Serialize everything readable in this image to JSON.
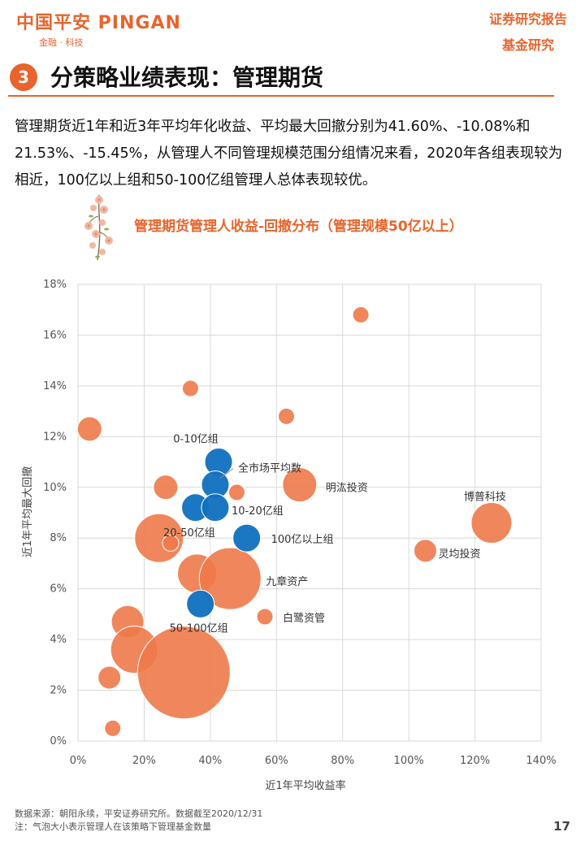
{
  "header": {
    "logo_text": "中国平安 PINGAN",
    "logo_sub": "金融 · 科技",
    "report_type": "证券研究报告",
    "report_sub": "基金研究"
  },
  "section": {
    "number": "3",
    "title": "分策略业绩表现：管理期货"
  },
  "body_text": "管理期货近1年和近3年平均年化收益、平均最大回撤分别为41.60%、-10.08%和21.53%、-15.45%，从管理人不同管理规模范围分组情况来看，2020年各组表现较为相近，100亿以上组和50-100亿组管理人总体表现较优。",
  "chart_title": "管理期货管理人收益-回撤分布（管理规模50亿以上）",
  "chart_data": {
    "type": "scatter",
    "xlabel": "近1年平均收益率",
    "ylabel": "近1年平均最大回撤",
    "xlim": [
      0,
      1.4
    ],
    "ylim": [
      0,
      0.18
    ],
    "x_ticks": [
      "0%",
      "20%",
      "40%",
      "60%",
      "80%",
      "100%",
      "120%",
      "140%"
    ],
    "y_ticks": [
      "0%",
      "2%",
      "4%",
      "6%",
      "8%",
      "10%",
      "12%",
      "14%",
      "16%",
      "18%"
    ],
    "grid": true,
    "colors": {
      "managers": "#EE7A4A",
      "groups": "#1070C0"
    },
    "series": [
      {
        "points": [
          {
            "x": 0.855,
            "y": 0.168,
            "r": 10
          },
          {
            "x": 0.34,
            "y": 0.139,
            "r": 10
          },
          {
            "x": 0.63,
            "y": 0.128,
            "r": 10
          },
          {
            "x": 0.035,
            "y": 0.123,
            "r": 15
          },
          {
            "x": 0.265,
            "y": 0.1,
            "r": 15
          },
          {
            "x": 0.48,
            "y": 0.098,
            "r": 10
          },
          {
            "x": 0.67,
            "y": 0.101,
            "r": 21,
            "label": "明汯投资"
          },
          {
            "x": 1.25,
            "y": 0.086,
            "r": 25,
            "label": "博普科技"
          },
          {
            "x": 1.05,
            "y": 0.075,
            "r": 14,
            "label": "灵均投资"
          },
          {
            "x": 0.245,
            "y": 0.08,
            "r": 30
          },
          {
            "x": 0.28,
            "y": 0.078,
            "r": 10
          },
          {
            "x": 0.36,
            "y": 0.066,
            "r": 24
          },
          {
            "x": 0.46,
            "y": 0.064,
            "r": 38,
            "label": "九章资产"
          },
          {
            "x": 0.565,
            "y": 0.049,
            "r": 10,
            "label": "白鹭资管"
          },
          {
            "x": 0.15,
            "y": 0.047,
            "r": 20
          },
          {
            "x": 0.17,
            "y": 0.036,
            "r": 29
          },
          {
            "x": 0.32,
            "y": 0.027,
            "r": 57
          },
          {
            "x": 0.095,
            "y": 0.025,
            "r": 14
          },
          {
            "x": 0.105,
            "y": 0.005,
            "r": 10
          }
        ]
      },
      {
        "points": [
          {
            "x": 0.425,
            "y": 0.11,
            "r": 17,
            "label": "0-10亿组"
          },
          {
            "x": 0.415,
            "y": 0.101,
            "r": 17,
            "label": "全市场平均数"
          },
          {
            "x": 0.355,
            "y": 0.092,
            "r": 17
          },
          {
            "x": 0.415,
            "y": 0.092,
            "r": 17,
            "label": "10-20亿组"
          },
          {
            "x": 0.51,
            "y": 0.08,
            "r": 17,
            "label": "100亿以上组"
          },
          {
            "x": 0.37,
            "y": 0.054,
            "r": 17,
            "label": "50-100亿组"
          }
        ]
      }
    ],
    "extra_labels": [
      "20-50亿组"
    ]
  },
  "footer": {
    "source": "数据来源：朝阳永续，平安证券研究所。数据截至2020/12/31",
    "note": "注：气泡大小表示管理人在该策略下管理基金数量"
  },
  "page_number": "17"
}
